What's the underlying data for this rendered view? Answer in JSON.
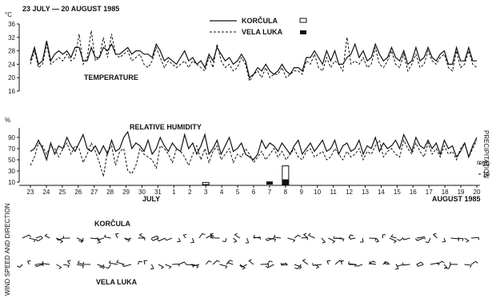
{
  "chart_data": [
    {
      "type": "line",
      "title": "23 JULY — 20 AUGUST 1985",
      "panel_label": "TEMPERATURE",
      "ylabel": "°C",
      "ylim": [
        16,
        36
      ],
      "yticks": [
        16,
        20,
        24,
        28,
        32,
        36
      ],
      "legend": {
        "placement": "top-center",
        "entries": [
          "KORČULA",
          "VELA LUKA"
        ]
      },
      "series": [
        {
          "name": "KORČULA",
          "style": "solid",
          "values": [
            25,
            29,
            24,
            25,
            31,
            25,
            27,
            28,
            27,
            28,
            26,
            29,
            29,
            25,
            25,
            29,
            26,
            26,
            29,
            28,
            30,
            27,
            27,
            28,
            29,
            27,
            28,
            28,
            27,
            27,
            26,
            30,
            28,
            25,
            26,
            25,
            24,
            26,
            28,
            25,
            26,
            24,
            25,
            23,
            27,
            25,
            29,
            27,
            25,
            26,
            24,
            25,
            27,
            25,
            20,
            21,
            23,
            22,
            24,
            22,
            21,
            22,
            24,
            22,
            21,
            23,
            23,
            22,
            26,
            26,
            28,
            26,
            24,
            28,
            25,
            28,
            24,
            24,
            26,
            27,
            30,
            26,
            28,
            25,
            26,
            30,
            27,
            25,
            26,
            29,
            26,
            25,
            28,
            24,
            25,
            29,
            25,
            26,
            29,
            26,
            25,
            27,
            28,
            24,
            24,
            29,
            25,
            25,
            29,
            25,
            25
          ]
        },
        {
          "name": "VELA LUKA",
          "style": "dashed",
          "values": [
            24,
            28,
            23,
            24,
            30,
            24,
            25,
            26,
            25,
            27,
            25,
            26,
            33,
            24,
            26,
            34,
            25,
            26,
            32,
            26,
            33,
            27,
            26,
            27,
            28,
            25,
            26,
            27,
            24,
            23,
            25,
            29,
            26,
            23,
            25,
            24,
            23,
            24,
            25,
            23,
            25,
            24,
            23,
            22,
            26,
            23,
            30,
            25,
            23,
            24,
            22,
            23,
            26,
            24,
            19,
            21,
            22,
            20,
            23,
            20,
            21,
            21,
            23,
            20,
            21,
            22,
            22,
            21,
            25,
            24,
            27,
            23,
            22,
            26,
            23,
            25,
            24,
            22,
            32,
            24,
            25,
            24,
            26,
            23,
            24,
            29,
            24,
            23,
            25,
            28,
            24,
            23,
            27,
            22,
            24,
            27,
            23,
            24,
            28,
            25,
            24,
            26,
            27,
            23,
            22,
            28,
            23,
            24,
            28,
            24,
            23
          ]
        }
      ]
    },
    {
      "type": "line",
      "panel_label": "RELATIVE HUMIDITY",
      "ylabel": "%",
      "ylim": [
        10,
        100
      ],
      "yticks": [
        10,
        30,
        50,
        70,
        90
      ],
      "series": [
        {
          "name": "KORČULA",
          "style": "solid",
          "values": [
            65,
            70,
            85,
            70,
            50,
            80,
            60,
            75,
            70,
            90,
            75,
            65,
            80,
            95,
            70,
            65,
            75,
            60,
            75,
            60,
            85,
            65,
            70,
            90,
            100,
            70,
            80,
            75,
            65,
            85,
            60,
            70,
            90,
            75,
            65,
            80,
            70,
            65,
            95,
            70,
            80,
            60,
            75,
            95,
            60,
            70,
            85,
            60,
            75,
            90,
            65,
            70,
            80,
            60,
            55,
            50,
            60,
            85,
            70,
            80,
            75,
            65,
            80,
            70,
            60,
            75,
            85,
            60,
            70,
            80,
            65,
            75,
            85,
            65,
            70,
            85,
            60,
            75,
            80,
            65,
            70,
            85,
            60,
            75,
            70,
            90,
            65,
            80,
            70,
            75,
            85,
            70,
            95,
            80,
            65,
            90,
            75,
            70,
            85,
            70,
            80,
            60,
            85,
            70,
            75,
            55,
            65,
            80,
            55,
            75,
            90
          ]
        },
        {
          "name": "VELA LUKA",
          "style": "dashed",
          "values": [
            40,
            55,
            80,
            75,
            60,
            75,
            70,
            55,
            70,
            80,
            60,
            75,
            70,
            45,
            60,
            80,
            65,
            45,
            20,
            65,
            75,
            40,
            65,
            70,
            30,
            25,
            40,
            70,
            60,
            55,
            50,
            35,
            75,
            70,
            60,
            45,
            70,
            65,
            55,
            40,
            60,
            75,
            50,
            70,
            45,
            65,
            75,
            50,
            60,
            70,
            45,
            60,
            55,
            70,
            60,
            45,
            55,
            65,
            50,
            60,
            70,
            55,
            65,
            50,
            60,
            70,
            55,
            50,
            65,
            70,
            55,
            60,
            65,
            50,
            55,
            70,
            60,
            50,
            65,
            55,
            60,
            70,
            50,
            65,
            60,
            75,
            85,
            55,
            65,
            70,
            60,
            55,
            85,
            70,
            60,
            80,
            65,
            55,
            80,
            60,
            70,
            55,
            75,
            60,
            65,
            50,
            70,
            80,
            55,
            70,
            85
          ]
        }
      ]
    },
    {
      "type": "bar",
      "title": "PRECIPITATION",
      "ylabel": "mm",
      "ylim": [
        0,
        20
      ],
      "yticks": [
        10,
        20
      ],
      "x": [
        "3",
        "7",
        "8"
      ],
      "series": [
        {
          "name": "KORČULA",
          "fill": "open",
          "values": [
            2,
            0,
            18
          ]
        },
        {
          "name": "VELA LUKA",
          "fill": "solid",
          "values": [
            0,
            3,
            5
          ]
        }
      ]
    },
    {
      "type": "table",
      "panel_label": "WIND SPEED AND DIRECTION",
      "rows": [
        "KORČULA",
        "VELA LUKA"
      ]
    }
  ],
  "x_axis": {
    "day_ticks": [
      "23",
      "24",
      "25",
      "26",
      "27",
      "28",
      "29",
      "30",
      "31",
      "1",
      "2",
      "3",
      "4",
      "5",
      "6",
      "7",
      "8",
      "9",
      "10",
      "11",
      "12",
      "13",
      "14",
      "15",
      "16",
      "17",
      "18",
      "19",
      "20"
    ],
    "month_labels": [
      "JULY",
      "AUGUST 1985"
    ]
  }
}
